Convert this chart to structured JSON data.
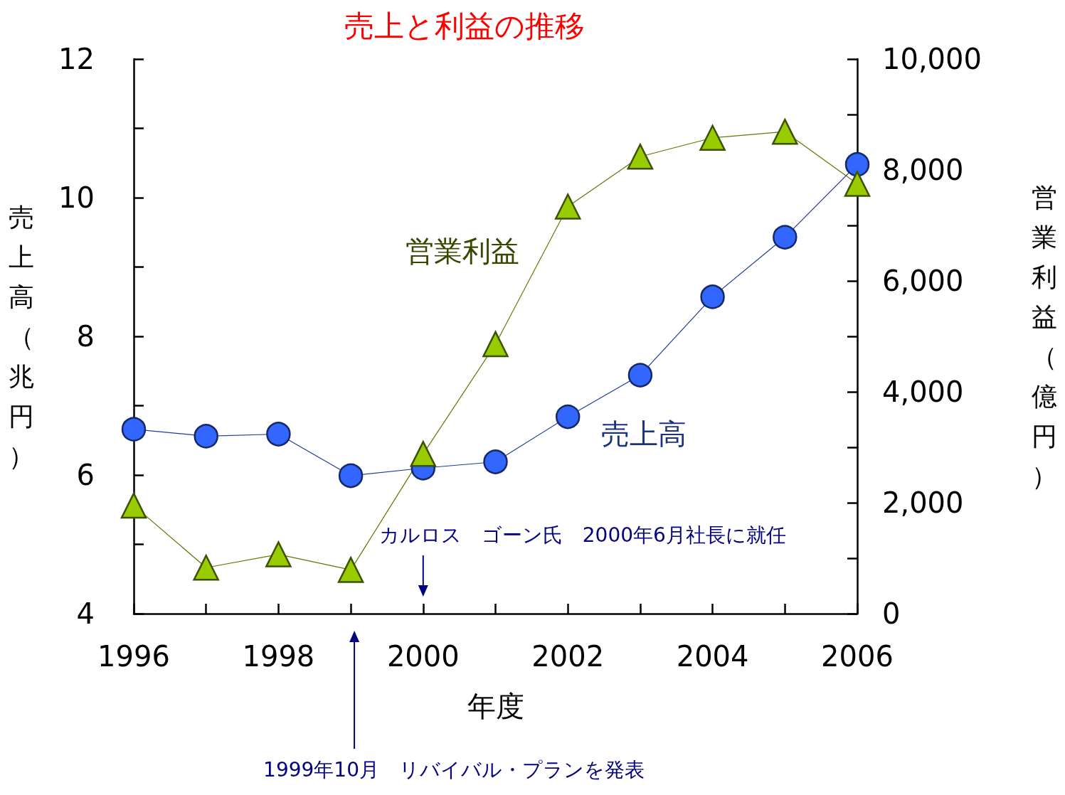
{
  "chart_data": {
    "type": "line",
    "title": "売上と利益の推移",
    "xlabel": "年度",
    "ylabel": "売上高（兆円）",
    "y2label": "営業利益（億円）",
    "x": [
      1996,
      1997,
      1998,
      1999,
      2000,
      2001,
      2002,
      2003,
      2004,
      2005,
      2006
    ],
    "xlim": [
      1996,
      2006
    ],
    "xticks": [
      1996,
      {
        "value": 1997,
        "label": null
      },
      1998,
      {
        "value": 1999,
        "label": null
      },
      2000,
      {
        "value": 2001,
        "label": null
      },
      2002,
      {
        "value": 2003,
        "label": null
      },
      2004,
      {
        "value": 2005,
        "label": null
      },
      2006
    ],
    "ylim": [
      4,
      12
    ],
    "yticks": [
      4,
      {
        "value": 5,
        "label": null
      },
      6,
      {
        "value": 7,
        "label": null
      },
      8,
      {
        "value": 9,
        "label": null
      },
      10,
      {
        "value": 11,
        "label": null
      },
      12
    ],
    "y2lim": [
      0,
      10000
    ],
    "y2ticks": [
      0,
      {
        "value": 1000,
        "label": null
      },
      {
        "value": 2000,
        "label": "2,000"
      },
      {
        "value": 3000,
        "label": null
      },
      {
        "value": 4000,
        "label": "4,000"
      },
      {
        "value": 5000,
        "label": null
      },
      {
        "value": 6000,
        "label": "6,000"
      },
      {
        "value": 7000,
        "label": null
      },
      {
        "value": 8000,
        "label": "8,000"
      },
      {
        "value": 9000,
        "label": null
      },
      {
        "value": 10000,
        "label": "10,000"
      }
    ],
    "series": [
      {
        "name": "売上高",
        "color": "#3366ff",
        "marker": "circle",
        "values": [
          6.66,
          6.56,
          6.59,
          5.99,
          6.1,
          6.19,
          6.84,
          7.44,
          8.57,
          9.43,
          10.48
        ]
      },
      {
        "name": "営業利益",
        "color": "#99cc00",
        "marker": "triangle",
        "axis": "y2",
        "values": [
          1950,
          830,
          1070,
          790,
          2880,
          4860,
          7340,
          8240,
          8580,
          8690,
          7750
        ]
      }
    ],
    "annotations": [
      "カルロス　ゴーン氏　2000年6月社長に就任",
      "1999年10月　リバイバル・プランを発表"
    ],
    "grid": false,
    "legend": false
  }
}
